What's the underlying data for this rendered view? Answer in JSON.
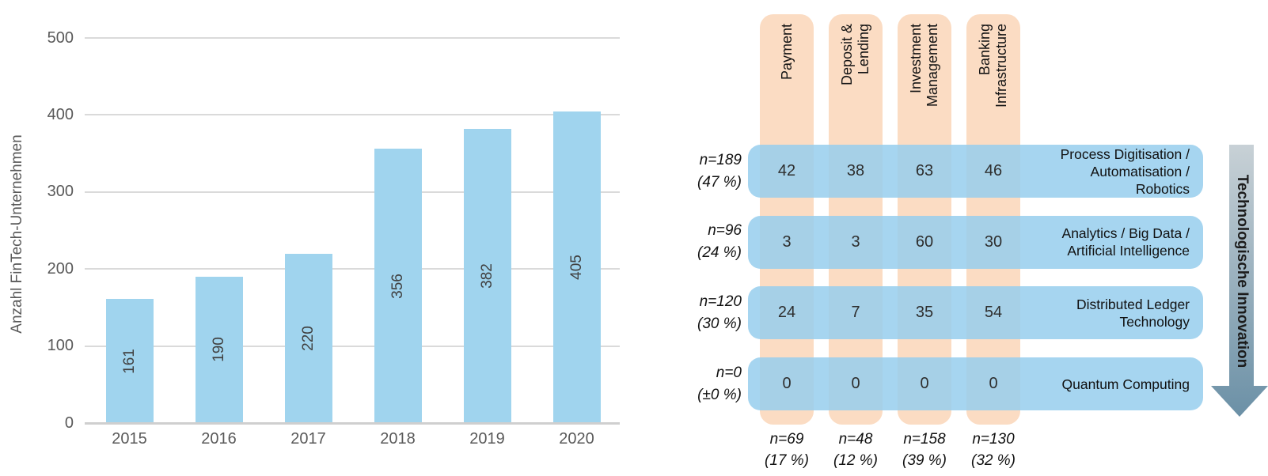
{
  "chart_data": [
    {
      "type": "bar",
      "title": "",
      "ylabel": "Anzahl FinTech-Unternehmen",
      "categories": [
        "2015",
        "2016",
        "2017",
        "2018",
        "2019",
        "2020"
      ],
      "values": [
        161,
        190,
        220,
        356,
        382,
        405
      ],
      "ylim": [
        0,
        500
      ],
      "yticks": [
        0,
        100,
        200,
        300,
        400,
        500
      ],
      "grid": true,
      "bar_color": "#A0D4EE",
      "value_label_placement": "inside-center-rotated"
    },
    {
      "type": "heatmap",
      "title": "",
      "columns": [
        {
          "label_lines": [
            "Payment"
          ],
          "total_n": "n=69",
          "total_pct": "(17 %)"
        },
        {
          "label_lines": [
            "Deposit &",
            "Lending"
          ],
          "total_n": "n=48",
          "total_pct": "(12 %)"
        },
        {
          "label_lines": [
            "Investment",
            "Management"
          ],
          "total_n": "n=158",
          "total_pct": "(39 %)"
        },
        {
          "label_lines": [
            "Banking",
            "Infrastructure"
          ],
          "total_n": "n=130",
          "total_pct": "(32 %)"
        }
      ],
      "rows": [
        {
          "label_lines": [
            "Process Digitisation /",
            "Automatisation /",
            "Robotics"
          ],
          "total_n": "n=189",
          "total_pct": "(47 %)"
        },
        {
          "label_lines": [
            "Analytics / Big Data /",
            "Artificial Intelligence"
          ],
          "total_n": "n=96",
          "total_pct": "(24 %)"
        },
        {
          "label_lines": [
            "Distributed Ledger",
            "Technology"
          ],
          "total_n": "n=120",
          "total_pct": "(30 %)"
        },
        {
          "label_lines": [
            "Quantum Computing"
          ],
          "total_n": "n=0",
          "total_pct": "(±0 %)"
        }
      ],
      "values": [
        [
          42,
          38,
          63,
          46
        ],
        [
          3,
          3,
          60,
          30
        ],
        [
          24,
          7,
          35,
          54
        ],
        [
          0,
          0,
          0,
          0
        ]
      ],
      "arrow_label": "Technologische Innovation",
      "column_color": "#FBDCC3",
      "row_color": "#A7D6EF",
      "arrow_gradient_top": "#C8D1D6",
      "arrow_gradient_bottom": "#6B90A6"
    }
  ]
}
